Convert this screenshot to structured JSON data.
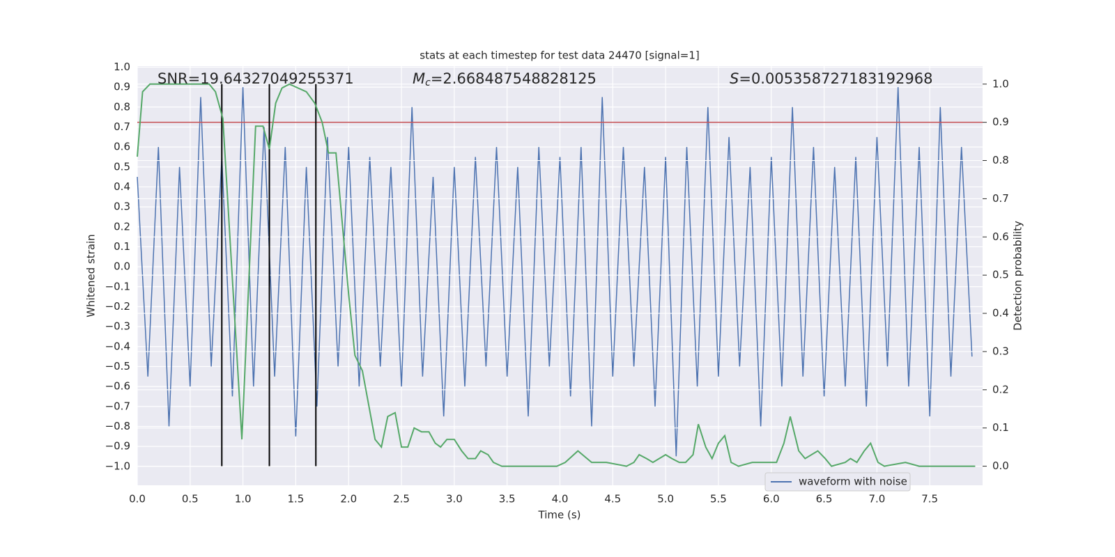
{
  "chart_data": {
    "type": "line",
    "title": "stats at each timestep for test data 24470 [signal=1]",
    "xlabel": "Time (s)",
    "ylabel": "Whitened strain",
    "y2label": "Detection probability",
    "annotations": [
      {
        "text": "SNR=19.64327049255371"
      },
      {
        "symbol": "M",
        "subscript": "c",
        "text": "=2.668487548828125"
      },
      {
        "symbol": "S",
        "text": "=0.005358727183192968"
      }
    ],
    "xlim": [
      0,
      8
    ],
    "ylim": [
      -1.095,
      1.005
    ],
    "y2lim": [
      -0.05,
      1.047
    ],
    "xticks": [
      {
        "value": 0,
        "label": "0.0"
      },
      0.5,
      {
        "value": 1,
        "label": "1.0"
      },
      1.5,
      {
        "value": 2,
        "label": "2.0"
      },
      2.5,
      {
        "value": 3,
        "label": "3.0"
      },
      3.5,
      {
        "value": 4,
        "label": "4.0"
      },
      4.5,
      {
        "value": 5,
        "label": "5.0"
      },
      5.5,
      {
        "value": 6,
        "label": "6.0"
      },
      6.5,
      {
        "value": 7,
        "label": "7.0"
      },
      7.5
    ],
    "yticks": [
      {
        "value": -1,
        "label": "−1.0"
      },
      {
        "value": -0.9,
        "label": "−0.9"
      },
      {
        "value": -0.8,
        "label": "−0.8"
      },
      {
        "value": -0.7,
        "label": "−0.7"
      },
      {
        "value": -0.6,
        "label": "−0.6"
      },
      {
        "value": -0.5,
        "label": "−0.5"
      },
      {
        "value": -0.4,
        "label": "−0.4"
      },
      {
        "value": -0.3,
        "label": "−0.3"
      },
      {
        "value": -0.2,
        "label": "−0.2"
      },
      {
        "value": -0.1,
        "label": "−0.1"
      },
      {
        "value": 0,
        "label": "0.0"
      },
      0.1,
      0.2,
      0.3,
      0.4,
      0.5,
      0.6,
      0.7,
      0.8,
      0.9,
      {
        "value": 1,
        "label": "1.0"
      }
    ],
    "y2ticks": [
      {
        "value": 0,
        "label": "0.0"
      },
      0.1,
      0.2,
      0.3,
      0.4,
      0.5,
      0.6,
      0.7,
      0.8,
      0.9,
      {
        "value": 1,
        "label": "1.0"
      }
    ],
    "grid": true,
    "legend": "lower right",
    "threshold": 0.9,
    "threshold_color": "#c44e52",
    "vlines": [
      0.8,
      1.25,
      1.69
    ],
    "vline_color": "#000000",
    "vline_span": [
      0,
      1
    ],
    "series": [
      {
        "name": "waveform with noise",
        "color": "#4c72b0",
        "x": [
          0,
          0.1,
          0.2,
          0.3,
          0.4,
          0.5,
          0.6,
          0.7,
          0.8,
          0.9,
          1,
          1.1,
          1.2,
          1.3,
          1.4,
          1.5,
          1.6,
          1.7,
          1.8,
          1.9,
          2,
          2.1,
          2.2,
          2.3,
          2.4,
          2.5,
          2.6,
          2.7,
          2.8,
          2.9,
          3,
          3.1,
          3.2,
          3.3,
          3.4,
          3.5,
          3.6,
          3.7,
          3.8,
          3.9,
          4,
          4.1,
          4.2,
          4.3,
          4.4,
          4.5,
          4.6,
          4.7,
          4.8,
          4.9,
          5,
          5.1,
          5.2,
          5.3,
          5.4,
          5.5,
          5.6,
          5.7,
          5.8,
          5.9,
          6,
          6.1,
          6.2,
          6.3,
          6.4,
          6.5,
          6.6,
          6.7,
          6.8,
          6.9,
          7,
          7.1,
          7.2,
          7.3,
          7.4,
          7.5,
          7.6,
          7.7,
          7.8,
          7.9
        ],
        "values": [
          0.45,
          -0.55,
          0.6,
          -0.8,
          0.5,
          -0.6,
          0.85,
          -0.5,
          0.55,
          -0.65,
          0.9,
          -0.6,
          0.7,
          -0.55,
          0.6,
          -0.85,
          0.5,
          -0.7,
          0.65,
          -0.5,
          0.6,
          -0.6,
          0.55,
          -0.5,
          0.5,
          -0.6,
          0.8,
          -0.55,
          0.45,
          -0.75,
          0.5,
          -0.6,
          0.55,
          -0.5,
          0.6,
          -0.55,
          0.5,
          -0.75,
          0.6,
          -0.5,
          0.55,
          -0.65,
          0.6,
          -0.8,
          0.85,
          -0.55,
          0.6,
          -0.5,
          0.5,
          -0.7,
          0.55,
          -0.95,
          0.6,
          -0.6,
          0.8,
          -0.55,
          0.65,
          -0.5,
          0.5,
          -0.8,
          0.55,
          -0.6,
          0.8,
          -0.55,
          0.6,
          -0.65,
          0.5,
          -0.6,
          0.55,
          -0.7,
          0.65,
          -0.5,
          0.9,
          -0.6,
          0.6,
          -0.75,
          0.8,
          -0.55,
          0.6,
          -0.45
        ]
      },
      {
        "color": "#55a868",
        "axis": "y2",
        "x": [
          0,
          0.05,
          0.12,
          0.68,
          0.74,
          0.81,
          0.99,
          1.12,
          1.19,
          1.25,
          1.31,
          1.37,
          1.44,
          1.6,
          1.68,
          1.75,
          1.81,
          1.88,
          2,
          2.06,
          2.13,
          2.25,
          2.31,
          2.37,
          2.44,
          2.5,
          2.56,
          2.62,
          2.69,
          2.76,
          2.82,
          2.87,
          2.93,
          3,
          3.07,
          3.13,
          3.2,
          3.25,
          3.32,
          3.37,
          3.45,
          3.81,
          3.97,
          4.05,
          4.17,
          4.3,
          4.44,
          4.63,
          4.7,
          4.75,
          4.82,
          4.88,
          5,
          5.06,
          5.13,
          5.19,
          5.26,
          5.31,
          5.38,
          5.44,
          5.5,
          5.56,
          5.62,
          5.69,
          5.82,
          5.95,
          6.05,
          6.12,
          6.18,
          6.26,
          6.32,
          6.44,
          6.51,
          6.57,
          6.7,
          6.75,
          6.81,
          6.88,
          6.94,
          7.01,
          7.07,
          7.27,
          7.4,
          7.93
        ],
        "values": [
          0.81,
          0.98,
          1,
          1,
          0.98,
          0.91,
          0.07,
          0.89,
          0.89,
          0.83,
          0.95,
          0.99,
          1,
          0.98,
          0.95,
          0.9,
          0.82,
          0.82,
          0.45,
          0.29,
          0.25,
          0.07,
          0.05,
          0.13,
          0.14,
          0.05,
          0.05,
          0.1,
          0.09,
          0.09,
          0.06,
          0.05,
          0.07,
          0.07,
          0.04,
          0.02,
          0.02,
          0.04,
          0.03,
          0.01,
          0,
          0,
          0,
          0.01,
          0.04,
          0.01,
          0.01,
          0,
          0.01,
          0.03,
          0.02,
          0.01,
          0.03,
          0.02,
          0.01,
          0.01,
          0.03,
          0.11,
          0.05,
          0.02,
          0.06,
          0.08,
          0.01,
          0,
          0.01,
          0.01,
          0.01,
          0.06,
          0.13,
          0.04,
          0.02,
          0.04,
          0.02,
          0,
          0.01,
          0.02,
          0.01,
          0.04,
          0.06,
          0.01,
          0,
          0.01,
          0,
          0
        ]
      }
    ],
    "background": "#eaeaf2"
  }
}
